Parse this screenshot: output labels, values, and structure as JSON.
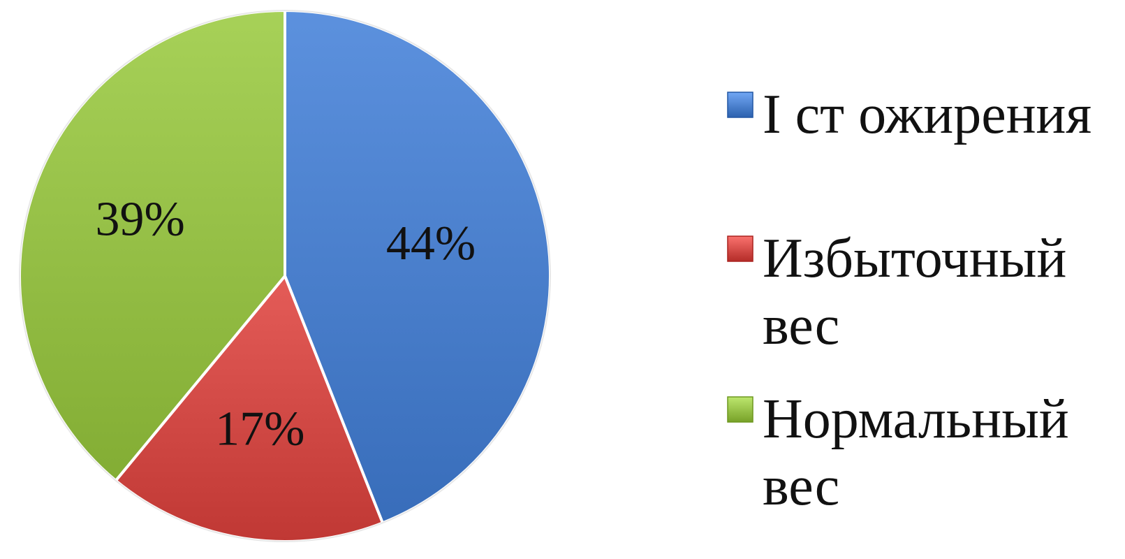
{
  "chart_data": {
    "type": "pie",
    "title": "",
    "legend_position": "right",
    "start_angle_deg": 0,
    "direction": "clockwise",
    "slices": [
      {
        "name": "I ст ожирения",
        "legend_lines": [
          "I ст ожирения"
        ],
        "value": 44,
        "label": "44%",
        "color": "#4a7fcc"
      },
      {
        "name": "Избыточный вес",
        "legend_lines": [
          "Избыточный",
          "вес"
        ],
        "value": 17,
        "label": "17%",
        "color": "#d24a46"
      },
      {
        "name": "Нормальный вес",
        "legend_lines": [
          "Нормальный",
          "вес"
        ],
        "value": 39,
        "label": "39%",
        "color": "#95bf46"
      }
    ]
  }
}
